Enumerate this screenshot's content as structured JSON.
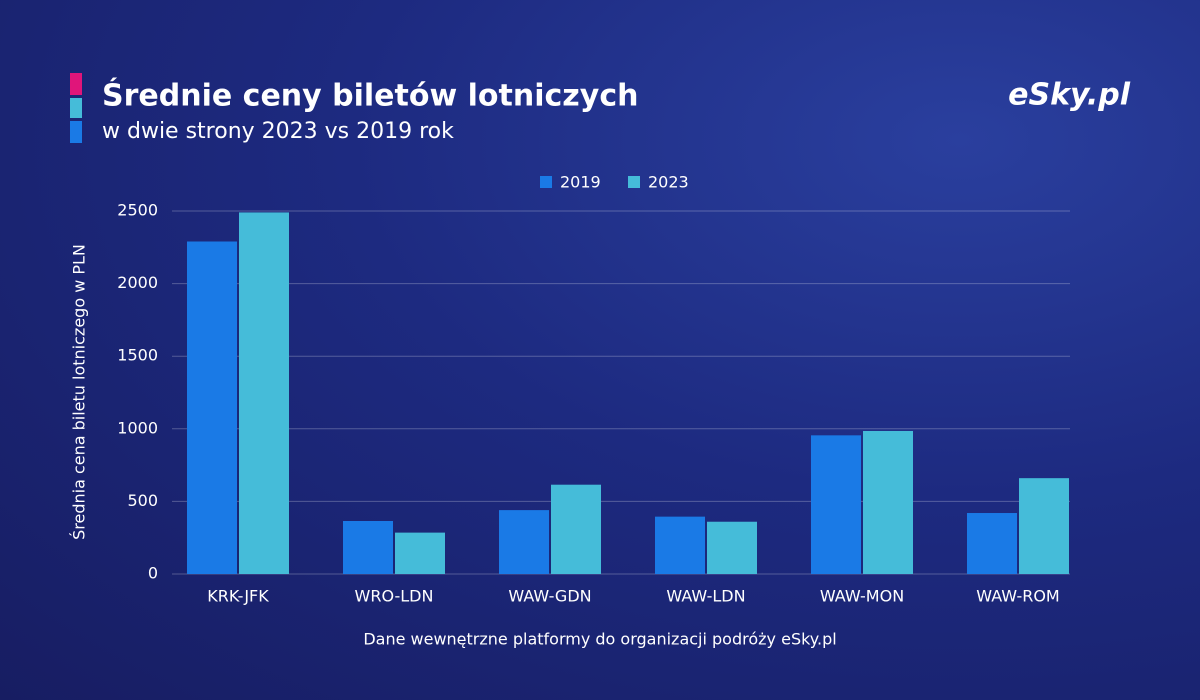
{
  "chart_data": {
    "type": "bar",
    "title": "Średnie ceny biletów lotniczych",
    "subtitle": "w dwie strony 2023 vs 2019 rok",
    "logo": "eSky.pl",
    "y_label": "Średnia cena biletu lotniczego w PLN",
    "source": "Dane wewnętrzne platformy do organizacji podróży eSky.pl",
    "categories": [
      "KRK-JFK",
      "WRO-LDN",
      "WAW-GDN",
      "WAW-LDN",
      "WAW-MON",
      "WAW-ROM"
    ],
    "series": [
      {
        "name": "2019",
        "color": "#1a7ae6",
        "values": [
          2290,
          365,
          440,
          395,
          955,
          420
        ]
      },
      {
        "name": "2023",
        "color": "#45bcd9",
        "values": [
          2490,
          285,
          615,
          360,
          985,
          660
        ]
      }
    ],
    "ylim": [
      0,
      2500
    ],
    "yticks": [
      0,
      500,
      1000,
      1500,
      2000,
      2500
    ],
    "grid": true,
    "legend": "top"
  }
}
